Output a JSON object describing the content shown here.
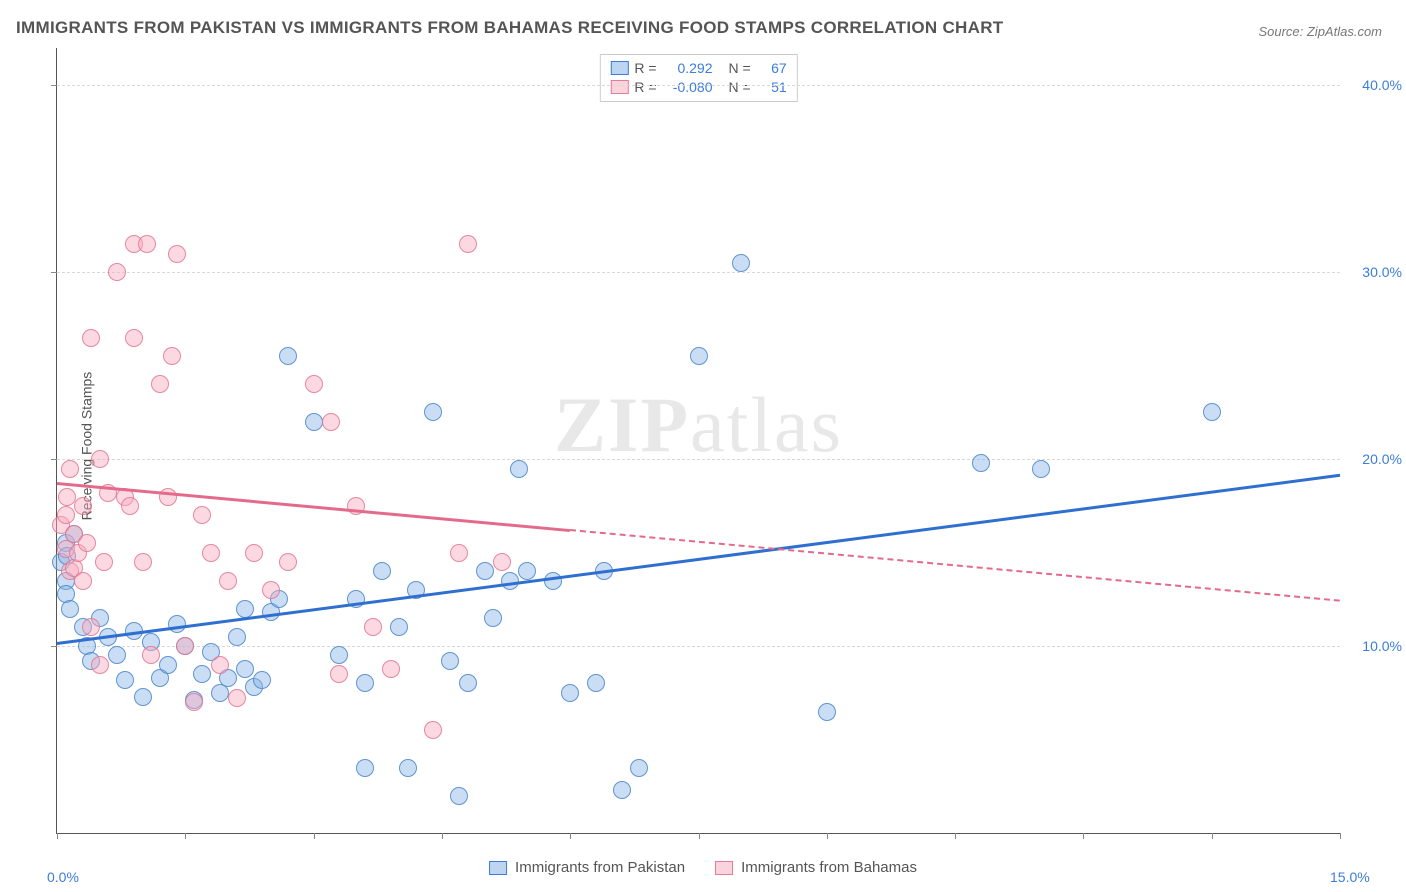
{
  "title": "IMMIGRANTS FROM PAKISTAN VS IMMIGRANTS FROM BAHAMAS RECEIVING FOOD STAMPS CORRELATION CHART",
  "source": "Source: ZipAtlas.com",
  "ylabel": "Receiving Food Stamps",
  "watermark": "ZIPatlas",
  "chart": {
    "type": "scatter",
    "background_color": "#ffffff",
    "grid_color": "#d8d8d8",
    "axis_color": "#555555",
    "tick_label_color": "#3b7dd8",
    "xlim": [
      0,
      15
    ],
    "ylim": [
      0,
      42
    ],
    "x_ticks": [
      0,
      15
    ],
    "x_tick_labels": [
      "0.0%",
      "15.0%"
    ],
    "x_minor_ticks_count": 10,
    "y_ticks": [
      10,
      20,
      30,
      40
    ],
    "y_tick_labels": [
      "10.0%",
      "20.0%",
      "30.0%",
      "40.0%"
    ],
    "marker_radius": 9,
    "series": [
      {
        "name": "Immigrants from Pakistan",
        "color_fill": "rgba(135,180,230,0.45)",
        "color_stroke": "rgba(70,130,200,0.8)",
        "R": "0.292",
        "N": "67",
        "trend": {
          "x0": 0,
          "y0": 10.2,
          "x1": 15,
          "y1": 19.2,
          "solid_until_x": 15,
          "color": "#2f6fd0"
        },
        "points": [
          [
            0.05,
            14.5
          ],
          [
            0.1,
            13.5
          ],
          [
            0.1,
            15.5
          ],
          [
            0.1,
            12.8
          ],
          [
            0.12,
            14.8
          ],
          [
            0.15,
            12.0
          ],
          [
            0.2,
            16.0
          ],
          [
            0.3,
            11.0
          ],
          [
            0.35,
            10.0
          ],
          [
            0.4,
            9.2
          ],
          [
            0.5,
            11.5
          ],
          [
            0.6,
            10.5
          ],
          [
            0.7,
            9.5
          ],
          [
            0.8,
            8.2
          ],
          [
            0.9,
            10.8
          ],
          [
            1.0,
            7.3
          ],
          [
            1.1,
            10.2
          ],
          [
            1.2,
            8.3
          ],
          [
            1.3,
            9.0
          ],
          [
            1.4,
            11.2
          ],
          [
            1.5,
            10.0
          ],
          [
            1.6,
            7.1
          ],
          [
            1.7,
            8.5
          ],
          [
            1.8,
            9.7
          ],
          [
            1.9,
            7.5
          ],
          [
            2.0,
            8.3
          ],
          [
            2.1,
            10.5
          ],
          [
            2.2,
            8.8
          ],
          [
            2.3,
            7.8
          ],
          [
            2.2,
            12.0
          ],
          [
            2.4,
            8.2
          ],
          [
            2.5,
            11.8
          ],
          [
            2.6,
            12.5
          ],
          [
            2.7,
            25.5
          ],
          [
            3.0,
            22.0
          ],
          [
            3.3,
            9.5
          ],
          [
            3.5,
            12.5
          ],
          [
            3.6,
            8.0
          ],
          [
            3.6,
            3.5
          ],
          [
            3.8,
            14.0
          ],
          [
            4.0,
            11.0
          ],
          [
            4.1,
            3.5
          ],
          [
            4.2,
            13.0
          ],
          [
            4.4,
            22.5
          ],
          [
            4.6,
            9.2
          ],
          [
            4.7,
            2.0
          ],
          [
            4.8,
            8.0
          ],
          [
            5.0,
            14.0
          ],
          [
            5.1,
            11.5
          ],
          [
            5.3,
            13.5
          ],
          [
            5.4,
            19.5
          ],
          [
            5.5,
            14.0
          ],
          [
            5.8,
            13.5
          ],
          [
            6.0,
            7.5
          ],
          [
            6.3,
            8.0
          ],
          [
            6.4,
            14.0
          ],
          [
            6.6,
            2.3
          ],
          [
            6.8,
            3.5
          ],
          [
            7.5,
            25.5
          ],
          [
            8.0,
            30.5
          ],
          [
            9.0,
            6.5
          ],
          [
            10.8,
            19.8
          ],
          [
            11.5,
            19.5
          ],
          [
            13.5,
            22.5
          ]
        ]
      },
      {
        "name": "Immigrants from Bahamas",
        "color_fill": "rgba(248,170,190,0.45)",
        "color_stroke": "rgba(225,115,140,0.8)",
        "R": "-0.080",
        "N": "51",
        "trend": {
          "x0": 0,
          "y0": 18.8,
          "x1": 15,
          "y1": 12.5,
          "solid_until_x": 6.0,
          "color": "#e46a8c"
        },
        "points": [
          [
            0.05,
            16.5
          ],
          [
            0.1,
            17.0
          ],
          [
            0.1,
            15.2
          ],
          [
            0.12,
            18.0
          ],
          [
            0.15,
            14.0
          ],
          [
            0.15,
            19.5
          ],
          [
            0.2,
            16.0
          ],
          [
            0.2,
            14.2
          ],
          [
            0.25,
            15.0
          ],
          [
            0.3,
            17.5
          ],
          [
            0.3,
            13.5
          ],
          [
            0.35,
            15.5
          ],
          [
            0.4,
            26.5
          ],
          [
            0.4,
            11.0
          ],
          [
            0.5,
            9.0
          ],
          [
            0.5,
            20.0
          ],
          [
            0.55,
            14.5
          ],
          [
            0.6,
            18.2
          ],
          [
            0.7,
            30.0
          ],
          [
            0.8,
            18.0
          ],
          [
            0.85,
            17.5
          ],
          [
            0.9,
            31.5
          ],
          [
            0.9,
            26.5
          ],
          [
            1.0,
            14.5
          ],
          [
            1.05,
            31.5
          ],
          [
            1.1,
            9.5
          ],
          [
            1.2,
            24.0
          ],
          [
            1.3,
            18.0
          ],
          [
            1.35,
            25.5
          ],
          [
            1.4,
            31.0
          ],
          [
            1.5,
            10.0
          ],
          [
            1.6,
            7.0
          ],
          [
            1.7,
            17.0
          ],
          [
            1.8,
            15.0
          ],
          [
            1.9,
            9.0
          ],
          [
            2.0,
            13.5
          ],
          [
            2.1,
            7.2
          ],
          [
            2.3,
            15.0
          ],
          [
            2.5,
            13.0
          ],
          [
            2.7,
            14.5
          ],
          [
            3.0,
            24.0
          ],
          [
            3.2,
            22.0
          ],
          [
            3.3,
            8.5
          ],
          [
            3.5,
            17.5
          ],
          [
            3.7,
            11.0
          ],
          [
            3.9,
            8.8
          ],
          [
            4.4,
            5.5
          ],
          [
            4.7,
            15.0
          ],
          [
            4.8,
            31.5
          ],
          [
            5.2,
            14.5
          ]
        ]
      }
    ],
    "legend_bottom": [
      {
        "swatch": "blue",
        "label": "Immigrants from Pakistan"
      },
      {
        "swatch": "pink",
        "label": "Immigrants from Bahamas"
      }
    ]
  }
}
